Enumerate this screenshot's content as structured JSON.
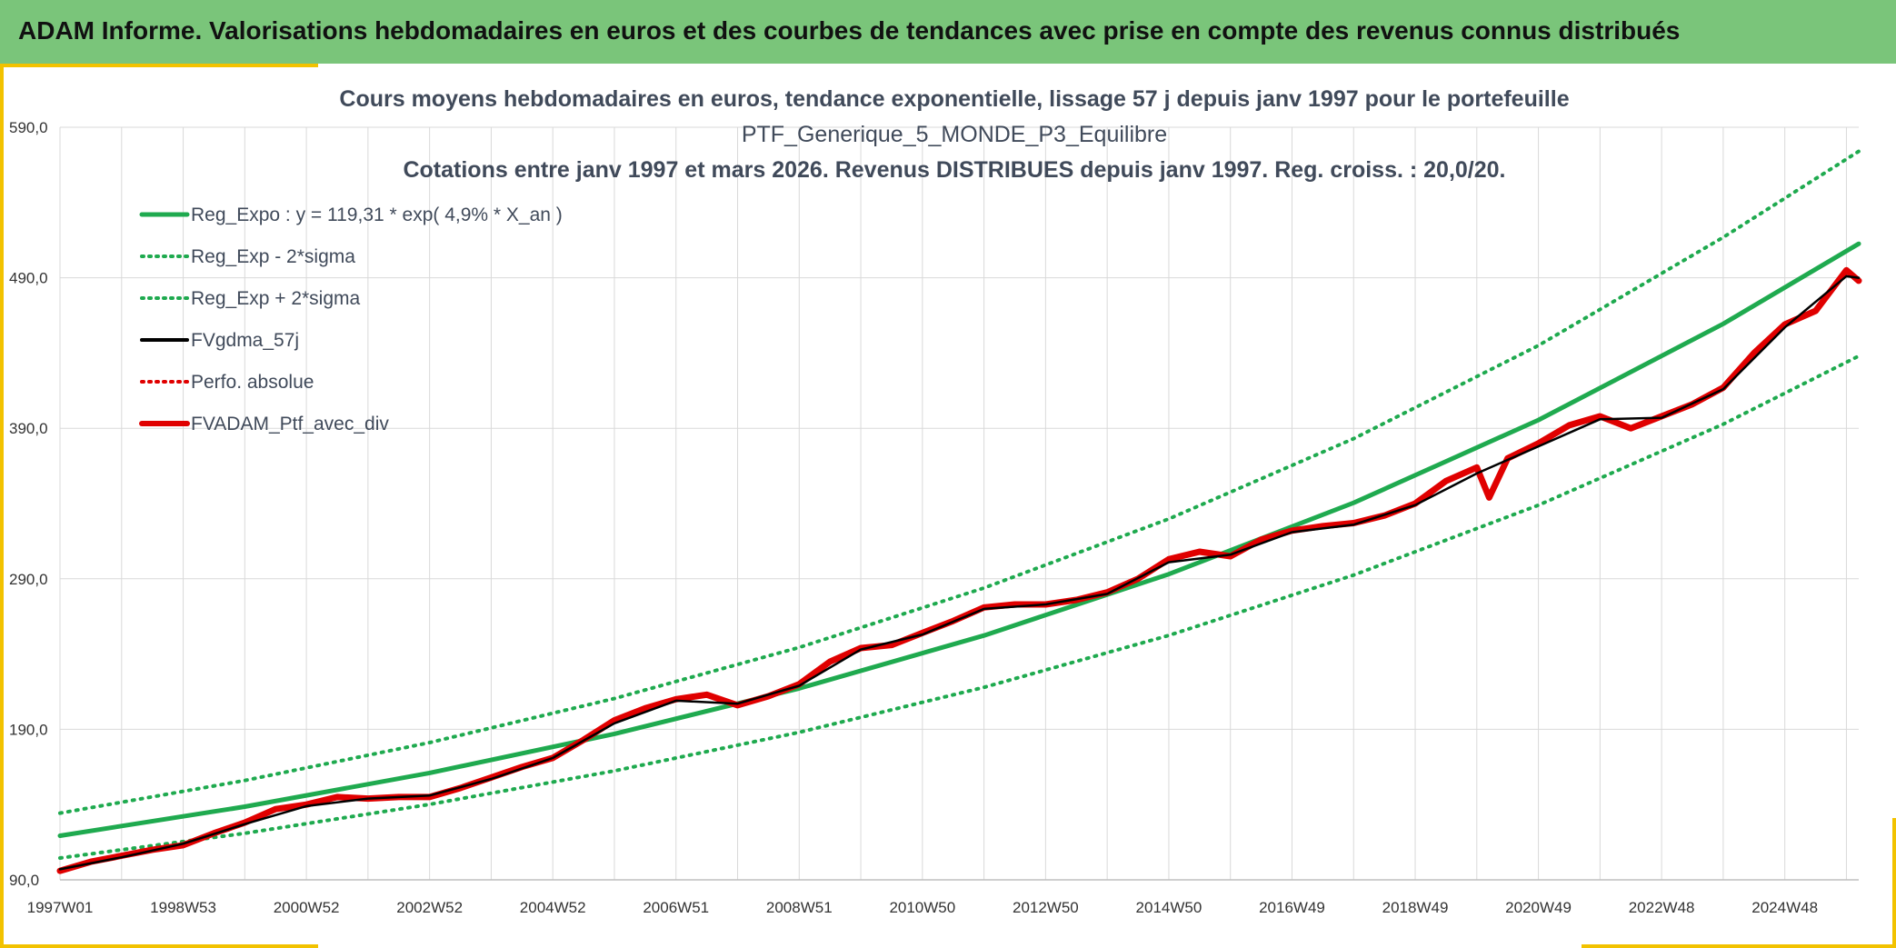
{
  "header": {
    "title": "ADAM Informe. Valorisations hebdomadaires en euros et des courbes de tendances avec prise en compte des revenus connus distribués"
  },
  "colors": {
    "header_bg": "#7ac57a",
    "accent": "#f2c200",
    "trend": "#1faa4f",
    "dma": "#000000",
    "perf": "#e00000",
    "grid": "#d9d9d9"
  },
  "chart_data": {
    "type": "line",
    "title_lines": [
      "Cours moyens hebdomadaires en euros, tendance exponentielle, lissage 57 j depuis janv 1997 pour le portefeuille",
      "PTF_Generique_5_MONDE_P3_Equilibre",
      "Cotations entre janv 1997 et mars 2026. Revenus DISTRIBUES depuis janv 1997. Reg. croiss. : 20,0/20."
    ],
    "y_ticks": [
      "590,0",
      "490,0",
      "390,0",
      "290,0",
      "190,0",
      "90,0"
    ],
    "ylim": [
      90,
      590
    ],
    "x_ticks": [
      "1997W01",
      "1998W53",
      "2000W52",
      "2002W52",
      "2004W52",
      "2006W51",
      "2008W51",
      "2010W50",
      "2012W50",
      "2014W50",
      "2016W49",
      "2018W49",
      "2020W49",
      "2022W48",
      "2024W48"
    ],
    "xlim": [
      1997.0,
      2026.2
    ],
    "grid": true,
    "legend_position": "top-left",
    "regression": {
      "a": 119.31,
      "r": 0.049
    },
    "legend": [
      {
        "label": "Reg_Expo : y = 119,31 * exp( 4,9% *  X_an )",
        "color": "#1faa4f",
        "style": "solid"
      },
      {
        "label": "Reg_Exp - 2*sigma",
        "color": "#1faa4f",
        "style": "dotted"
      },
      {
        "label": "Reg_Exp + 2*sigma",
        "color": "#1faa4f",
        "style": "dotted"
      },
      {
        "label": "FVgdma_57j",
        "color": "#000000",
        "style": "solid"
      },
      {
        "label": "Perfo. absolue",
        "color": "#e00000",
        "style": "dotted"
      },
      {
        "label": "FVADAM_Ptf_avec_div",
        "color": "#e00000",
        "style": "solid-thick"
      }
    ],
    "series": [
      {
        "name": "Reg_Expo : y = 119,31 * exp( 4,9% *  X_an )",
        "x": [
          1997.0,
          2000.0,
          2003.0,
          2006.0,
          2009.0,
          2012.0,
          2015.0,
          2018.0,
          2021.0,
          2024.0,
          2026.2
        ],
        "values": [
          119.3,
          138.6,
          161.0,
          187.0,
          217.2,
          252.3,
          293.1,
          340.5,
          395.5,
          459.4,
          512.6
        ]
      },
      {
        "name": "Reg_Exp - 2*sigma",
        "x": [
          1997.0,
          2000.0,
          2003.0,
          2006.0,
          2009.0,
          2012.0,
          2015.0,
          2018.0,
          2021.0,
          2024.0,
          2026.2
        ],
        "values": [
          104.5,
          120.9,
          140.1,
          162.4,
          188.0,
          217.9,
          252.4,
          292.5,
          338.9,
          392.7,
          438.0
        ]
      },
      {
        "name": "Reg_Exp + 2*sigma",
        "x": [
          1997.0,
          2000.0,
          2003.0,
          2006.0,
          2009.0,
          2012.0,
          2015.0,
          2018.0,
          2021.0,
          2024.0,
          2026.2
        ],
        "values": [
          134.3,
          156.0,
          181.2,
          210.5,
          244.4,
          283.9,
          329.8,
          383.1,
          445.0,
          516.9,
          574.0
        ]
      },
      {
        "name": "FVADAM_Ptf_avec_div",
        "x": [
          1997.0,
          1997.5,
          1998.0,
          1998.5,
          1999.0,
          1999.5,
          2000.0,
          2000.5,
          2001.0,
          2001.5,
          2002.0,
          2002.5,
          2003.0,
          2003.5,
          2004.0,
          2004.5,
          2005.0,
          2005.5,
          2006.0,
          2006.5,
          2007.0,
          2007.5,
          2008.0,
          2008.5,
          2009.0,
          2009.5,
          2010.0,
          2010.5,
          2011.0,
          2011.5,
          2012.0,
          2012.5,
          2013.0,
          2013.5,
          2014.0,
          2014.5,
          2015.0,
          2015.5,
          2016.0,
          2016.5,
          2017.0,
          2017.5,
          2018.0,
          2018.5,
          2019.0,
          2019.5,
          2020.0,
          2020.2,
          2020.5,
          2021.0,
          2021.5,
          2022.0,
          2022.5,
          2023.0,
          2023.5,
          2024.0,
          2024.5,
          2025.0,
          2025.5,
          2026.0,
          2026.2
        ],
        "values": [
          96,
          102,
          106,
          110,
          113,
          121,
          128,
          137,
          140,
          145,
          144,
          145,
          145,
          151,
          158,
          165,
          171,
          183,
          196,
          204,
          210,
          213,
          206,
          212,
          220,
          235,
          244,
          246,
          254,
          262,
          271,
          273,
          273,
          276,
          281,
          290,
          303,
          308,
          305,
          316,
          322,
          325,
          327,
          332,
          340,
          355,
          364,
          344,
          370,
          380,
          392,
          398,
          390,
          398,
          406,
          417,
          440,
          459,
          468,
          495,
          488
        ]
      },
      {
        "name": "FVgdma_57j",
        "x": [
          1997.0,
          1998.0,
          1999.0,
          2000.0,
          2001.0,
          2002.0,
          2003.0,
          2004.0,
          2005.0,
          2006.0,
          2007.0,
          2008.0,
          2009.0,
          2010.0,
          2011.0,
          2012.0,
          2013.0,
          2014.0,
          2015.0,
          2016.0,
          2017.0,
          2018.0,
          2019.0,
          2020.0,
          2021.0,
          2022.0,
          2023.0,
          2024.0,
          2025.0,
          2026.0,
          2026.2
        ],
        "values": [
          97,
          105,
          114,
          127,
          139,
          144,
          146,
          157,
          171,
          194,
          209,
          207,
          219,
          243,
          253,
          270,
          273,
          280,
          301,
          306,
          321,
          326,
          339,
          360,
          378,
          396,
          397,
          416,
          457,
          491,
          490
        ]
      }
    ]
  }
}
